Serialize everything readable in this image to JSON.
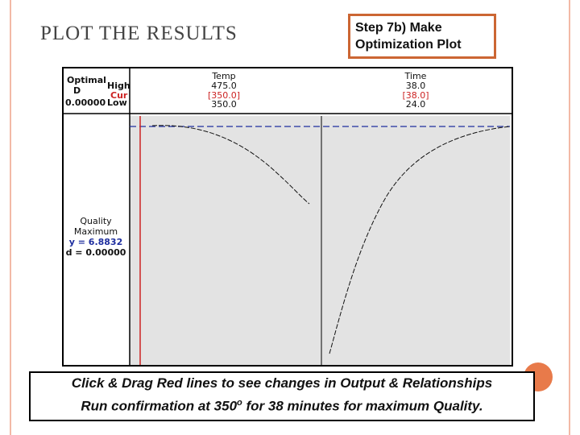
{
  "slide": {
    "title": "PLOT THE RESULTS",
    "step_line1": "Step 7b) Make",
    "step_line2": "Optimization Plot"
  },
  "optimizer": {
    "optimal_label": "Optimal",
    "d_label": "D",
    "d_value": "0.00000",
    "high_label": "High",
    "cur_label": "Cur",
    "low_label": "Low",
    "factors": [
      {
        "name": "Temp",
        "high": "475.0",
        "cur": "[350.0]",
        "low": "350.0"
      },
      {
        "name": "Time",
        "high": "38.0",
        "cur": "[38.0]",
        "low": "24.0"
      }
    ],
    "response": {
      "name": "Quality",
      "goal": "Maximum",
      "y_text": "y = 6.8832",
      "d_text": "d = 0.00000"
    }
  },
  "callout": {
    "line1": "Click & Drag Red lines to see changes in Output & Relationships",
    "line2_pre": "Run confirmation at 350",
    "line2_sup": "o",
    "line2_post": " for 38 minutes for maximum Quality."
  },
  "colors": {
    "accent": "#cc6633",
    "border": "#f2b9a6",
    "cur_red": "#cc2222",
    "response_blue": "#1f2f9f",
    "panel_grey": "#e3e3e3"
  }
}
